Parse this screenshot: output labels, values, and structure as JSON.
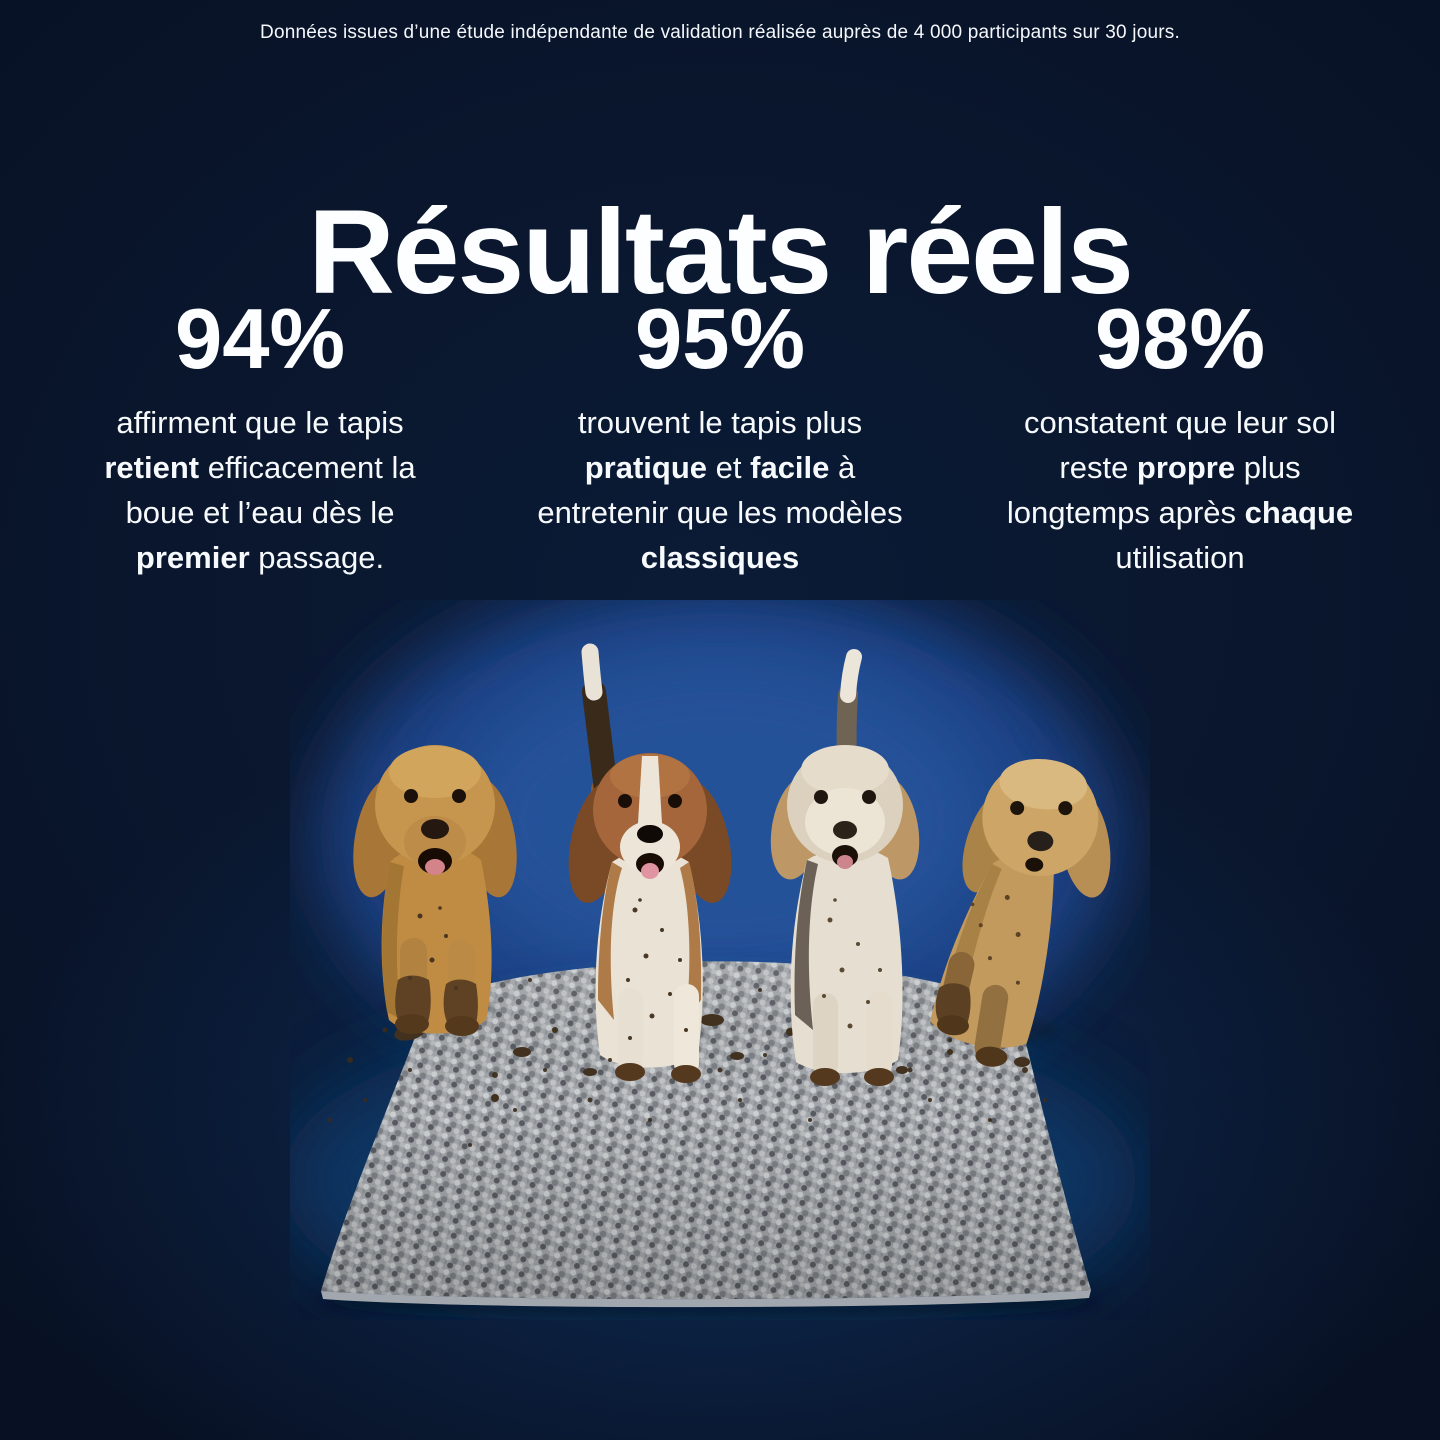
{
  "page": {
    "background_navy": "#081124",
    "backdrop_blue": "#1b4386",
    "glow_blue": "#0f3766",
    "text_color": "#ffffff"
  },
  "caption": "Données issues d’une étude indépendante de validation réalisée auprès de 4 000 participants sur 30 jours.",
  "title": "Résultats réels",
  "stats": {
    "columns": [
      {
        "percent": "94%",
        "segments": [
          {
            "text": "affirment que le tapis\n",
            "bold": false
          },
          {
            "text": "retient",
            "bold": true
          },
          {
            "text": " efficacement la\nboue et l’eau dès le\n",
            "bold": false
          },
          {
            "text": "premier",
            "bold": true
          },
          {
            "text": " passage.",
            "bold": false
          }
        ]
      },
      {
        "percent": "95%",
        "segments": [
          {
            "text": "trouvent le tapis plus\n",
            "bold": false
          },
          {
            "text": "pratique",
            "bold": true
          },
          {
            "text": " et ",
            "bold": false
          },
          {
            "text": "facile",
            "bold": true
          },
          {
            "text": " à\nentretenir que les modèles\n",
            "bold": false
          },
          {
            "text": "classiques",
            "bold": true
          }
        ]
      },
      {
        "percent": "98%",
        "segments": [
          {
            "text": "constatent que leur sol\nreste ",
            "bold": false
          },
          {
            "text": "propre",
            "bold": true
          },
          {
            "text": " plus\nlongtemps après ",
            "bold": false
          },
          {
            "text": "chaque",
            "bold": true
          },
          {
            "text": "\nutilisation",
            "bold": false
          }
        ]
      }
    ]
  },
  "photo": {
    "subjects": [
      "golden-retriever",
      "beagle",
      "cream-doodle",
      "apricot-doodle"
    ],
    "mat_color": "#a2a6aa",
    "mud_color": "#42311f",
    "photo_backdrop_color": "#1b4386"
  }
}
